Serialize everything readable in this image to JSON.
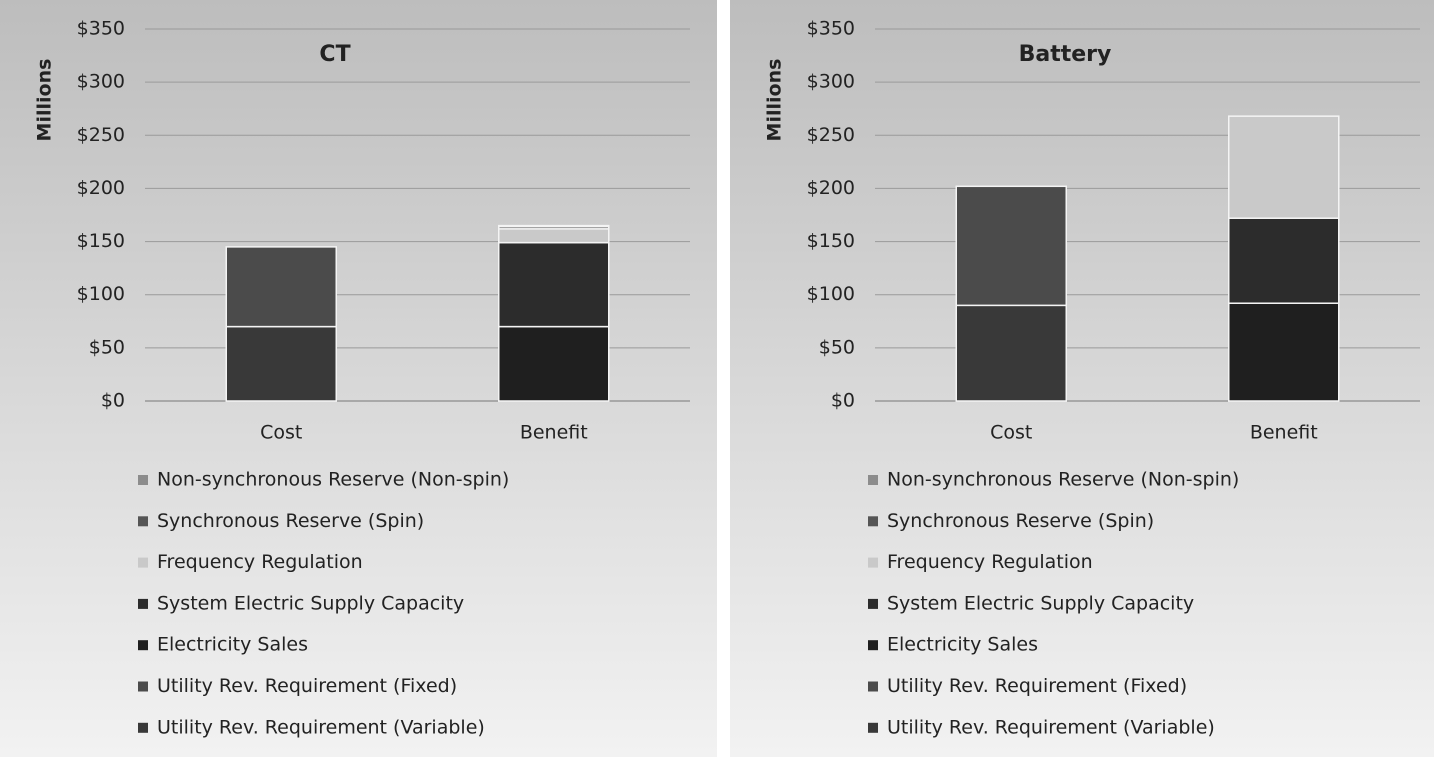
{
  "chart_data": [
    {
      "type": "bar",
      "stacked": true,
      "title": "CT",
      "ylabel": "Millions",
      "categories": [
        "Cost",
        "Benefit"
      ],
      "ylim": [
        0,
        350
      ],
      "yticks": [
        {
          "value": 0,
          "label": "$0"
        },
        {
          "value": 50,
          "label": "$50"
        },
        {
          "value": 100,
          "label": "$100"
        },
        {
          "value": 150,
          "label": "$150"
        },
        {
          "value": 200,
          "label": "$200"
        },
        {
          "value": 250,
          "label": "$250"
        },
        {
          "value": 300,
          "label": "$300"
        },
        {
          "value": 350,
          "label": "$350"
        }
      ],
      "grid": true,
      "series": [
        {
          "name": "Non-synchronous Reserve (Non-spin)",
          "color": "#8c8c8c",
          "values": [
            0,
            1
          ]
        },
        {
          "name": "Synchronous Reserve (Spin)",
          "color": "#555555",
          "values": [
            0,
            2
          ]
        },
        {
          "name": "Frequency Regulation",
          "color": "#c9c9c9",
          "values": [
            0,
            13
          ]
        },
        {
          "name": "System Electric Supply Capacity",
          "color": "#2c2c2c",
          "values": [
            0,
            79
          ]
        },
        {
          "name": "Electricity Sales",
          "color": "#1f1f1f",
          "values": [
            0,
            70
          ]
        },
        {
          "name": "Utility Rev. Requirement (Fixed)",
          "color": "#4b4b4b",
          "values": [
            75,
            0
          ]
        },
        {
          "name": "Utility Rev. Requirement  (Variable)",
          "color": "#393939",
          "values": [
            70,
            0
          ]
        }
      ]
    },
    {
      "type": "bar",
      "stacked": true,
      "title": "Battery",
      "ylabel": "Millions",
      "categories": [
        "Cost",
        "Benefit"
      ],
      "ylim": [
        0,
        350
      ],
      "yticks": [
        {
          "value": 0,
          "label": "$0"
        },
        {
          "value": 50,
          "label": "$50"
        },
        {
          "value": 100,
          "label": "$100"
        },
        {
          "value": 150,
          "label": "$150"
        },
        {
          "value": 200,
          "label": "$200"
        },
        {
          "value": 250,
          "label": "$250"
        },
        {
          "value": 300,
          "label": "$300"
        },
        {
          "value": 350,
          "label": "$350"
        }
      ],
      "grid": true,
      "series": [
        {
          "name": "Non-synchronous Reserve (Non-spin)",
          "color": "#8c8c8c",
          "values": [
            0,
            0
          ]
        },
        {
          "name": "Synchronous Reserve (Spin)",
          "color": "#555555",
          "values": [
            0,
            0
          ]
        },
        {
          "name": "Frequency Regulation",
          "color": "#c9c9c9",
          "values": [
            0,
            96
          ]
        },
        {
          "name": "System Electric Supply Capacity",
          "color": "#2c2c2c",
          "values": [
            0,
            80
          ]
        },
        {
          "name": "Electricity Sales",
          "color": "#1f1f1f",
          "values": [
            0,
            92
          ]
        },
        {
          "name": "Utility Rev. Requirement (Fixed)",
          "color": "#4b4b4b",
          "values": [
            112,
            0
          ]
        },
        {
          "name": "Utility Rev. Requirement  (Variable)",
          "color": "#393939",
          "values": [
            90,
            0
          ]
        }
      ]
    }
  ]
}
